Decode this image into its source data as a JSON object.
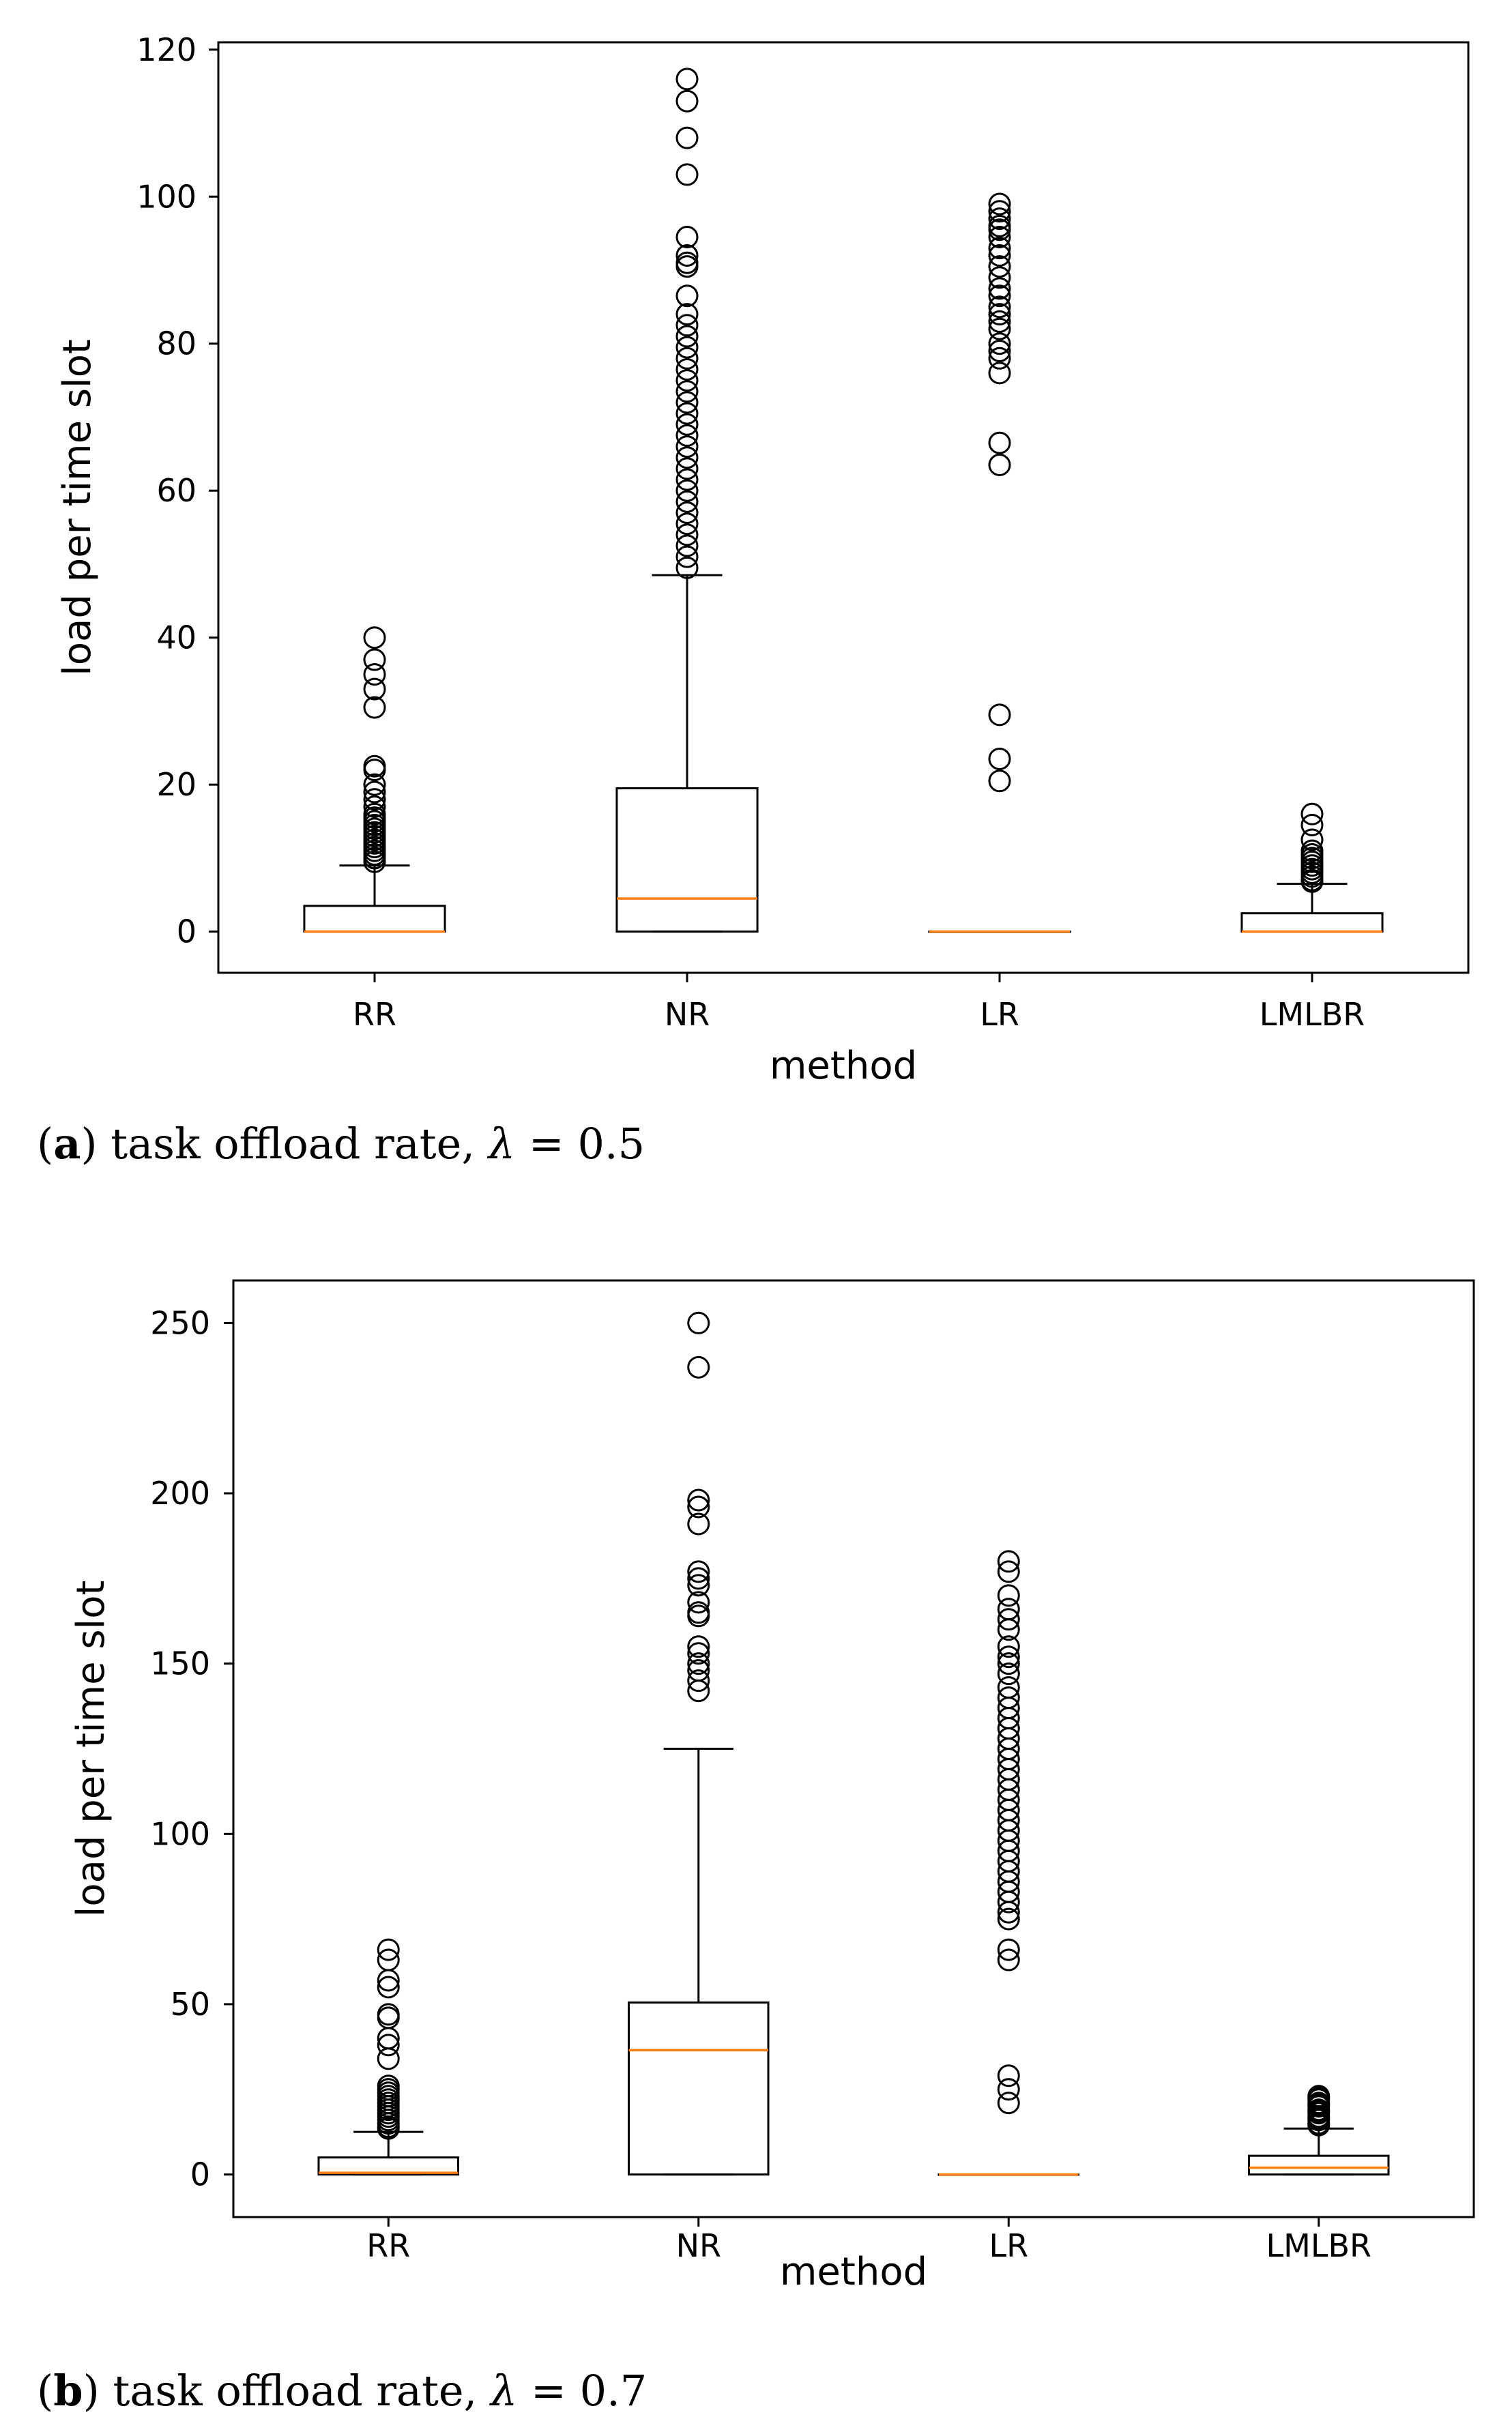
{
  "chart_data": [
    {
      "type": "box",
      "panel": "a",
      "xlabel": "method",
      "ylabel": "load per time slot",
      "ylim": [
        -5.6,
        121
      ],
      "yticks": [
        0,
        20,
        40,
        60,
        80,
        100,
        120
      ],
      "categories": [
        "RR",
        "NR",
        "LR",
        "LMLBR"
      ],
      "series": [
        {
          "name": "RR",
          "q1": 0,
          "median": 0,
          "q3": 3.5,
          "whisker_low": 0,
          "whisker_high": 9,
          "outliers": [
            40,
            37,
            35,
            33,
            30.5,
            22.5,
            22,
            20,
            19,
            18,
            17,
            16,
            15.5,
            15,
            14.5,
            14,
            13.5,
            13,
            12.5,
            12,
            11.5,
            11,
            10.5,
            10,
            9.5
          ]
        },
        {
          "name": "NR",
          "q1": 0,
          "median": 4.5,
          "q3": 19.5,
          "whisker_low": 0,
          "whisker_high": 48.5,
          "outliers": [
            116,
            113,
            108,
            103,
            94.5,
            92,
            91,
            90.5,
            86.5,
            84,
            82.5,
            81,
            79.5,
            78,
            76.5,
            75,
            73.5,
            72,
            70.5,
            69,
            67.5,
            66,
            64.5,
            63,
            61.5,
            60,
            58.5,
            57,
            55.5,
            54,
            52.5,
            51,
            49.5
          ]
        },
        {
          "name": "LR",
          "q1": 0,
          "median": 0,
          "q3": 0,
          "whisker_low": 0,
          "whisker_high": 0,
          "outliers": [
            99,
            98,
            97,
            96,
            95.5,
            94.5,
            93,
            92,
            90.5,
            89,
            87.5,
            86.5,
            85,
            84,
            83,
            82,
            80,
            79,
            78,
            76,
            66.5,
            63.5,
            29.5,
            23.5,
            20.5
          ]
        },
        {
          "name": "LMLBR",
          "q1": 0,
          "median": 0,
          "q3": 2.5,
          "whisker_low": 0,
          "whisker_high": 6.5,
          "outliers": [
            16,
            14.5,
            12.5,
            11,
            10.5,
            10,
            9.5,
            9,
            8.5,
            8,
            7.5,
            7,
            6.8
          ]
        }
      ]
    },
    {
      "type": "box",
      "panel": "b",
      "xlabel": "method",
      "ylabel": "load per time slot",
      "ylim": [
        -12.5,
        262.5
      ],
      "yticks": [
        0,
        50,
        100,
        150,
        200,
        250
      ],
      "categories": [
        "RR",
        "NR",
        "LR",
        "LMLBR"
      ],
      "series": [
        {
          "name": "RR",
          "q1": 0,
          "median": 0.5,
          "q3": 5,
          "whisker_low": 0,
          "whisker_high": 12.5,
          "outliers": [
            66,
            63,
            57,
            55,
            47,
            46,
            40,
            38,
            34,
            26,
            25,
            24,
            23,
            22,
            21,
            20,
            19,
            18,
            17,
            16,
            15,
            14,
            13.5
          ]
        },
        {
          "name": "NR",
          "q1": 0,
          "median": 36.5,
          "q3": 50.5,
          "whisker_low": 0,
          "whisker_high": 125,
          "outliers": [
            250,
            237,
            198,
            196,
            191,
            177,
            175,
            173,
            168,
            165,
            164,
            155,
            153,
            150,
            148,
            145,
            142
          ]
        },
        {
          "name": "LR",
          "q1": 0,
          "median": 0,
          "q3": 0,
          "whisker_low": 0,
          "whisker_high": 0,
          "outliers": [
            180,
            177,
            170,
            166,
            163,
            160,
            155,
            152,
            150,
            147,
            143,
            140,
            137,
            134,
            131,
            128,
            125,
            122,
            119,
            116,
            113,
            110,
            107,
            104,
            101,
            98,
            95,
            92,
            89,
            86,
            83,
            80,
            77,
            75,
            66,
            63,
            29,
            25,
            21
          ]
        },
        {
          "name": "LMLBR",
          "q1": 0,
          "median": 2,
          "q3": 5.5,
          "whisker_low": 0,
          "whisker_high": 13.5,
          "outliers": [
            23,
            22.5,
            22,
            21,
            20.5,
            20,
            19,
            18.5,
            18,
            17,
            16.5,
            16,
            15,
            14.5
          ]
        }
      ]
    }
  ],
  "captions": {
    "a": {
      "label": "a",
      "text": " task offload rate, ",
      "symbol": "λ",
      "value": " = 0.5"
    },
    "b": {
      "label": "b",
      "text": " task offload rate, ",
      "symbol": "λ",
      "value": " = 0.7"
    }
  },
  "colors": {
    "median": "#ff7f0e",
    "box": "#000000"
  }
}
